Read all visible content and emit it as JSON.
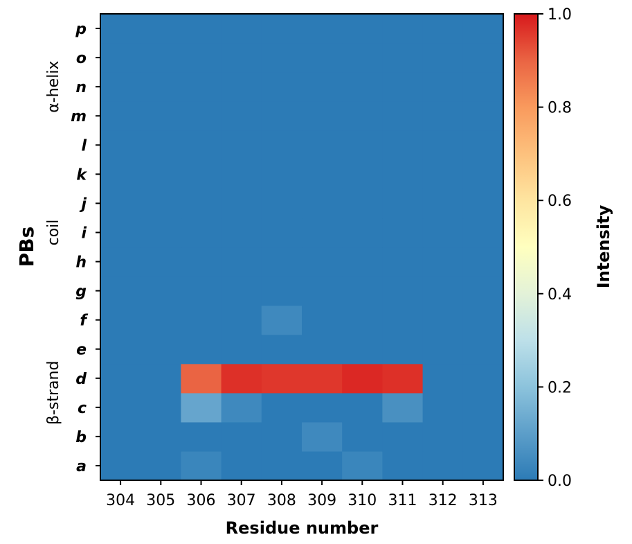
{
  "chart_data": {
    "type": "heatmap",
    "x_categories": [
      "304",
      "305",
      "306",
      "307",
      "308",
      "309",
      "310",
      "311",
      "312",
      "313"
    ],
    "y_categories": [
      "a",
      "b",
      "c",
      "d",
      "e",
      "f",
      "g",
      "h",
      "i",
      "j",
      "k",
      "l",
      "m",
      "n",
      "o",
      "p"
    ],
    "xlabel": "Residue number",
    "ylabel": "PBs",
    "colorbar_label": "Intensity",
    "colorbar_range": [
      0.0,
      1.0
    ],
    "colorbar_ticks": [
      "0.0",
      "0.2",
      "0.4",
      "0.6",
      "0.8",
      "1.0"
    ],
    "colormap": "RdYlBu_r",
    "y_groups": [
      {
        "label": "β-strand",
        "from": "a",
        "to": "f"
      },
      {
        "label": "coil",
        "from": "g",
        "to": "k"
      },
      {
        "label": "α-helix",
        "from": "l",
        "to": "p"
      }
    ],
    "values": [
      [
        0.0,
        0.0,
        0.03,
        0.0,
        0.0,
        0.0,
        0.03,
        0.0,
        0.0,
        0.0
      ],
      [
        0.0,
        0.0,
        0.0,
        0.0,
        0.0,
        0.04,
        0.0,
        0.0,
        0.0,
        0.0
      ],
      [
        0.0,
        0.0,
        0.12,
        0.04,
        0.0,
        0.0,
        0.0,
        0.06,
        0.0,
        0.0
      ],
      [
        0.0,
        0.0,
        0.9,
        0.97,
        0.96,
        0.96,
        0.98,
        0.97,
        0.0,
        0.0
      ],
      [
        0.0,
        0.0,
        0.0,
        0.0,
        0.0,
        0.0,
        0.0,
        0.0,
        0.0,
        0.0
      ],
      [
        0.0,
        0.0,
        0.0,
        0.0,
        0.04,
        0.0,
        0.0,
        0.0,
        0.0,
        0.0
      ],
      [
        0.0,
        0.0,
        0.0,
        0.0,
        0.0,
        0.0,
        0.0,
        0.0,
        0.0,
        0.0
      ],
      [
        0.0,
        0.0,
        0.0,
        0.0,
        0.0,
        0.0,
        0.0,
        0.0,
        0.0,
        0.0
      ],
      [
        0.0,
        0.0,
        0.0,
        0.0,
        0.0,
        0.0,
        0.0,
        0.0,
        0.0,
        0.0
      ],
      [
        0.0,
        0.0,
        0.0,
        0.0,
        0.0,
        0.0,
        0.0,
        0.0,
        0.0,
        0.0
      ],
      [
        0.0,
        0.0,
        0.0,
        0.0,
        0.0,
        0.0,
        0.0,
        0.0,
        0.0,
        0.0
      ],
      [
        0.0,
        0.0,
        0.0,
        0.0,
        0.0,
        0.0,
        0.0,
        0.0,
        0.0,
        0.0
      ],
      [
        0.0,
        0.0,
        0.0,
        0.0,
        0.0,
        0.0,
        0.0,
        0.0,
        0.0,
        0.0
      ],
      [
        0.0,
        0.0,
        0.0,
        0.0,
        0.0,
        0.0,
        0.0,
        0.0,
        0.0,
        0.0
      ],
      [
        0.0,
        0.0,
        0.0,
        0.0,
        0.0,
        0.0,
        0.0,
        0.0,
        0.0,
        0.0
      ],
      [
        0.0,
        0.0,
        0.0,
        0.0,
        0.0,
        0.0,
        0.0,
        0.0,
        0.0,
        0.0
      ]
    ]
  }
}
